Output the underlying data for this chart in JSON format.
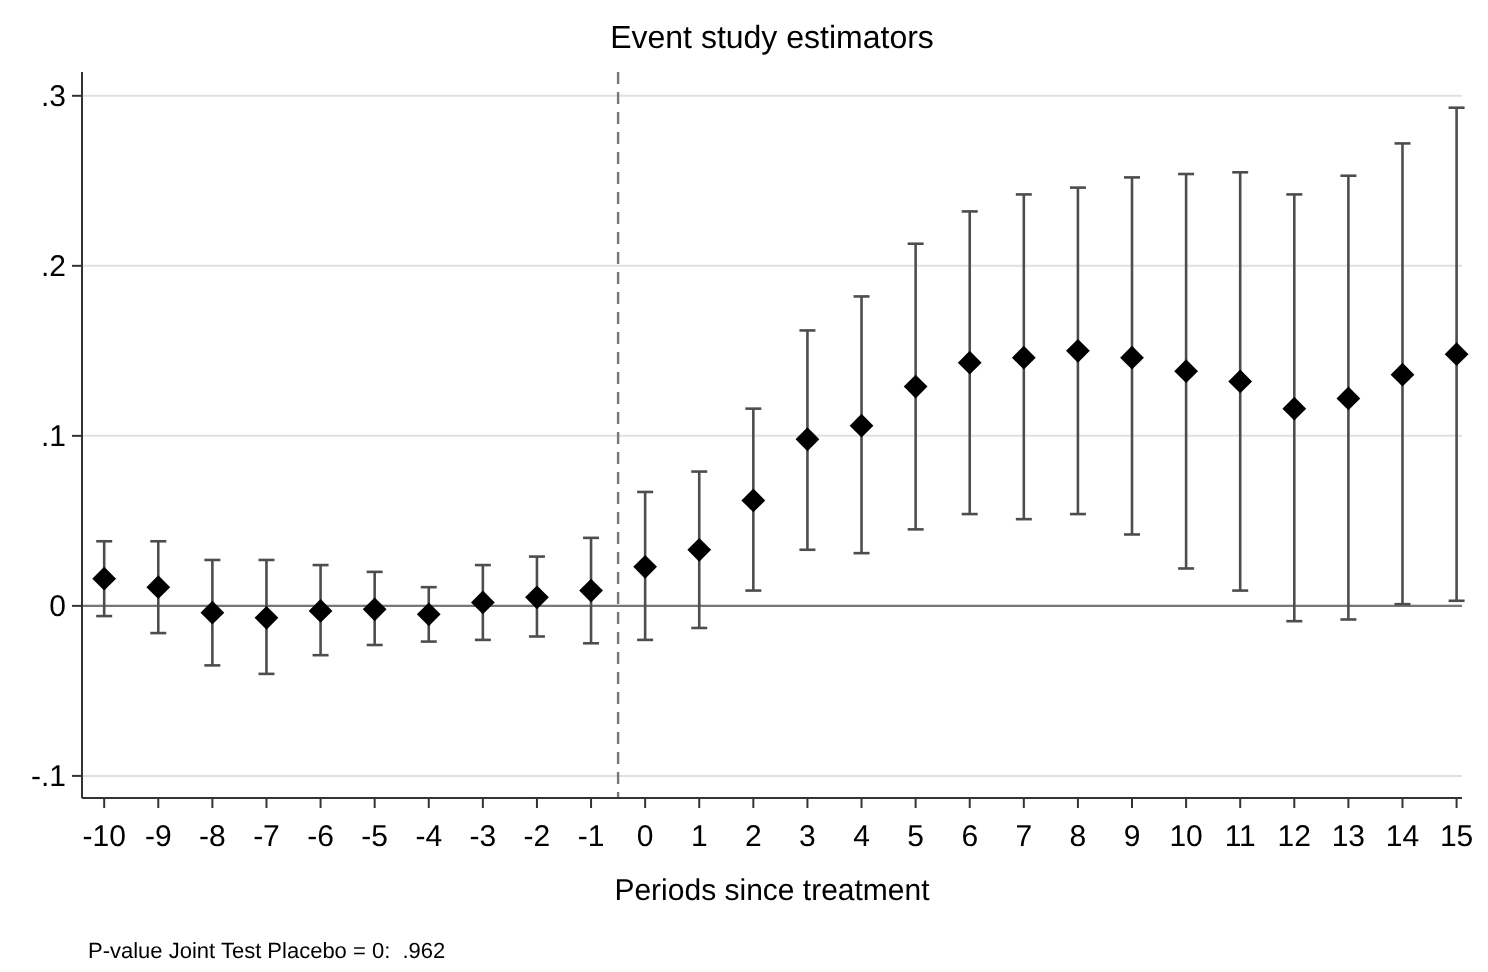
{
  "chart_data": {
    "type": "scatter",
    "title": "Event study estimators",
    "xlabel": "Periods since treatment",
    "x": [
      -10,
      -9,
      -8,
      -7,
      -6,
      -5,
      -4,
      -3,
      -2,
      -1,
      0,
      1,
      2,
      3,
      4,
      5,
      6,
      7,
      8,
      9,
      10,
      11,
      12,
      13,
      14,
      15
    ],
    "series": [
      {
        "color": "#000000",
        "values": [
          0.016,
          0.011,
          -0.004,
          -0.007,
          -0.003,
          -0.002,
          -0.005,
          0.002,
          0.005,
          0.009,
          0.023,
          0.033,
          0.062,
          0.098,
          0.106,
          0.129,
          0.143,
          0.146,
          0.15,
          0.146,
          0.138,
          0.132,
          0.116,
          0.122,
          0.136,
          0.148
        ],
        "errors": [
          [
            -0.006,
            0.038
          ],
          [
            -0.016,
            0.038
          ],
          [
            -0.035,
            0.027
          ],
          [
            -0.04,
            0.027
          ],
          [
            -0.029,
            0.024
          ],
          [
            -0.023,
            0.02
          ],
          [
            -0.021,
            0.011
          ],
          [
            -0.02,
            0.024
          ],
          [
            -0.018,
            0.029
          ],
          [
            -0.022,
            0.04
          ],
          [
            -0.02,
            0.067
          ],
          [
            -0.013,
            0.079
          ],
          [
            0.009,
            0.116
          ],
          [
            0.033,
            0.162
          ],
          [
            0.031,
            0.182
          ],
          [
            0.045,
            0.213
          ],
          [
            0.054,
            0.232
          ],
          [
            0.051,
            0.242
          ],
          [
            0.054,
            0.246
          ],
          [
            0.042,
            0.252
          ],
          [
            0.022,
            0.254
          ],
          [
            0.009,
            0.255
          ],
          [
            -0.009,
            0.242
          ],
          [
            -0.008,
            0.253
          ],
          [
            0.001,
            0.272
          ],
          [
            0.003,
            0.293
          ]
        ]
      }
    ],
    "marker": "diamond",
    "xlim": [
      -10.41,
      15.1
    ],
    "xticks": [
      -10,
      -9,
      -8,
      -7,
      -6,
      -5,
      -4,
      -3,
      -2,
      -1,
      0,
      1,
      2,
      3,
      4,
      5,
      6,
      7,
      8,
      9,
      10,
      11,
      12,
      13,
      14,
      15
    ],
    "ylim": [
      -0.113,
      0.314
    ],
    "yticks": [
      {
        "value": -0.1,
        "label": "-.1"
      },
      {
        "value": 0,
        "label": "0"
      },
      {
        "value": 0.1,
        "label": ".1"
      },
      {
        "value": 0.2,
        "label": ".2"
      },
      {
        "value": 0.3,
        "label": ".3"
      }
    ],
    "grid": "y",
    "ref_lines": [
      {
        "axis": "y",
        "value": 0,
        "color": "#777777",
        "line_style": "solid"
      },
      {
        "axis": "x",
        "value": -0.5,
        "color": "#777777",
        "line_style": "dashed"
      }
    ],
    "annotations": [
      "P-value Joint Test Placebo = 0:  .962"
    ]
  }
}
